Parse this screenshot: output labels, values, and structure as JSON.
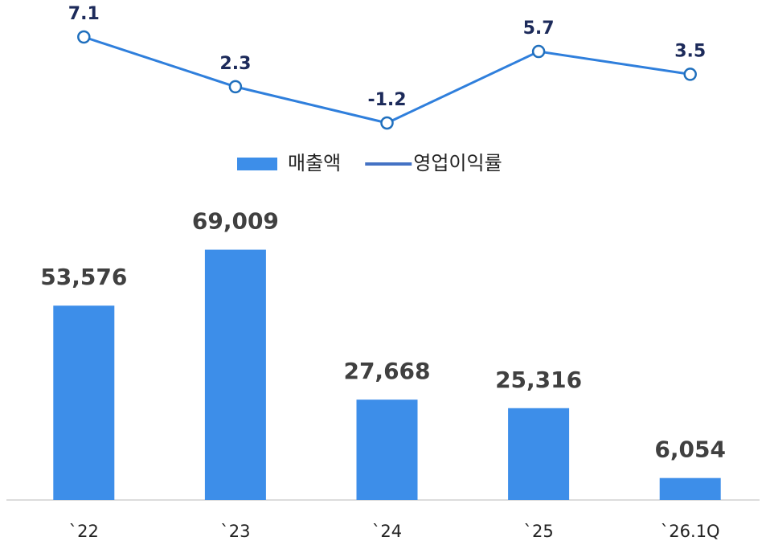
{
  "chart_data": {
    "type": "combo",
    "categories": [
      "`22",
      "`23",
      "`24",
      "`25",
      "`26.1Q"
    ],
    "series": [
      {
        "name": "매출액",
        "type": "bar",
        "color": "#3d8ee9",
        "values": [
          53576,
          69009,
          27668,
          25316,
          6054
        ],
        "value_labels": [
          "53,576",
          "69,009",
          "27,668",
          "25,316",
          "6,054"
        ]
      },
      {
        "name": "영업이익률",
        "type": "line",
        "axis": "y2",
        "color": "#2f7fdc",
        "legend_color": "#4472c4",
        "marker_stroke": "#1f6fbd",
        "values": [
          7.1,
          2.3,
          -1.2,
          5.7,
          3.5
        ]
      }
    ],
    "ylim": [
      0,
      80000
    ],
    "y2lim": [
      -2,
      8
    ],
    "grid": false,
    "legend": "middle"
  }
}
